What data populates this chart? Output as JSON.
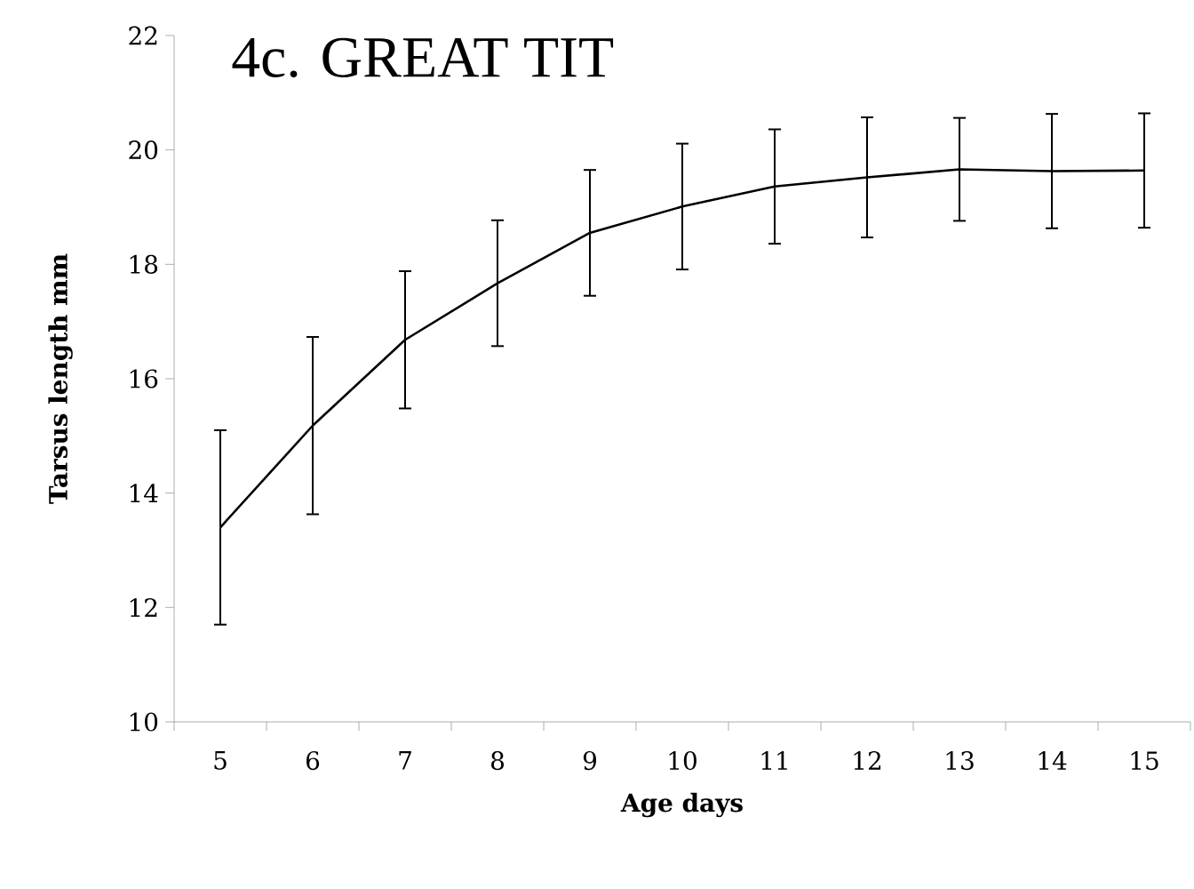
{
  "chart_data": {
    "type": "line",
    "title": "4c. GREAT TIT",
    "xlabel": "Age days",
    "ylabel": "Tarsus  length mm",
    "categories": [
      "5",
      "6",
      "7",
      "8",
      "9",
      "10",
      "11",
      "12",
      "13",
      "14",
      "15"
    ],
    "values": [
      13.4,
      15.18,
      16.68,
      17.67,
      18.55,
      19.01,
      19.36,
      19.52,
      19.66,
      19.63,
      19.64
    ],
    "errors": [
      1.7,
      1.55,
      1.2,
      1.1,
      1.1,
      1.1,
      1.0,
      1.05,
      0.9,
      1.0,
      1.0
    ],
    "color": "#000000",
    "marker": "none",
    "line_style": "solid",
    "grid": false,
    "ylim": [
      10,
      22
    ],
    "yticks": [
      10,
      12,
      14,
      16,
      18,
      20,
      22
    ]
  }
}
